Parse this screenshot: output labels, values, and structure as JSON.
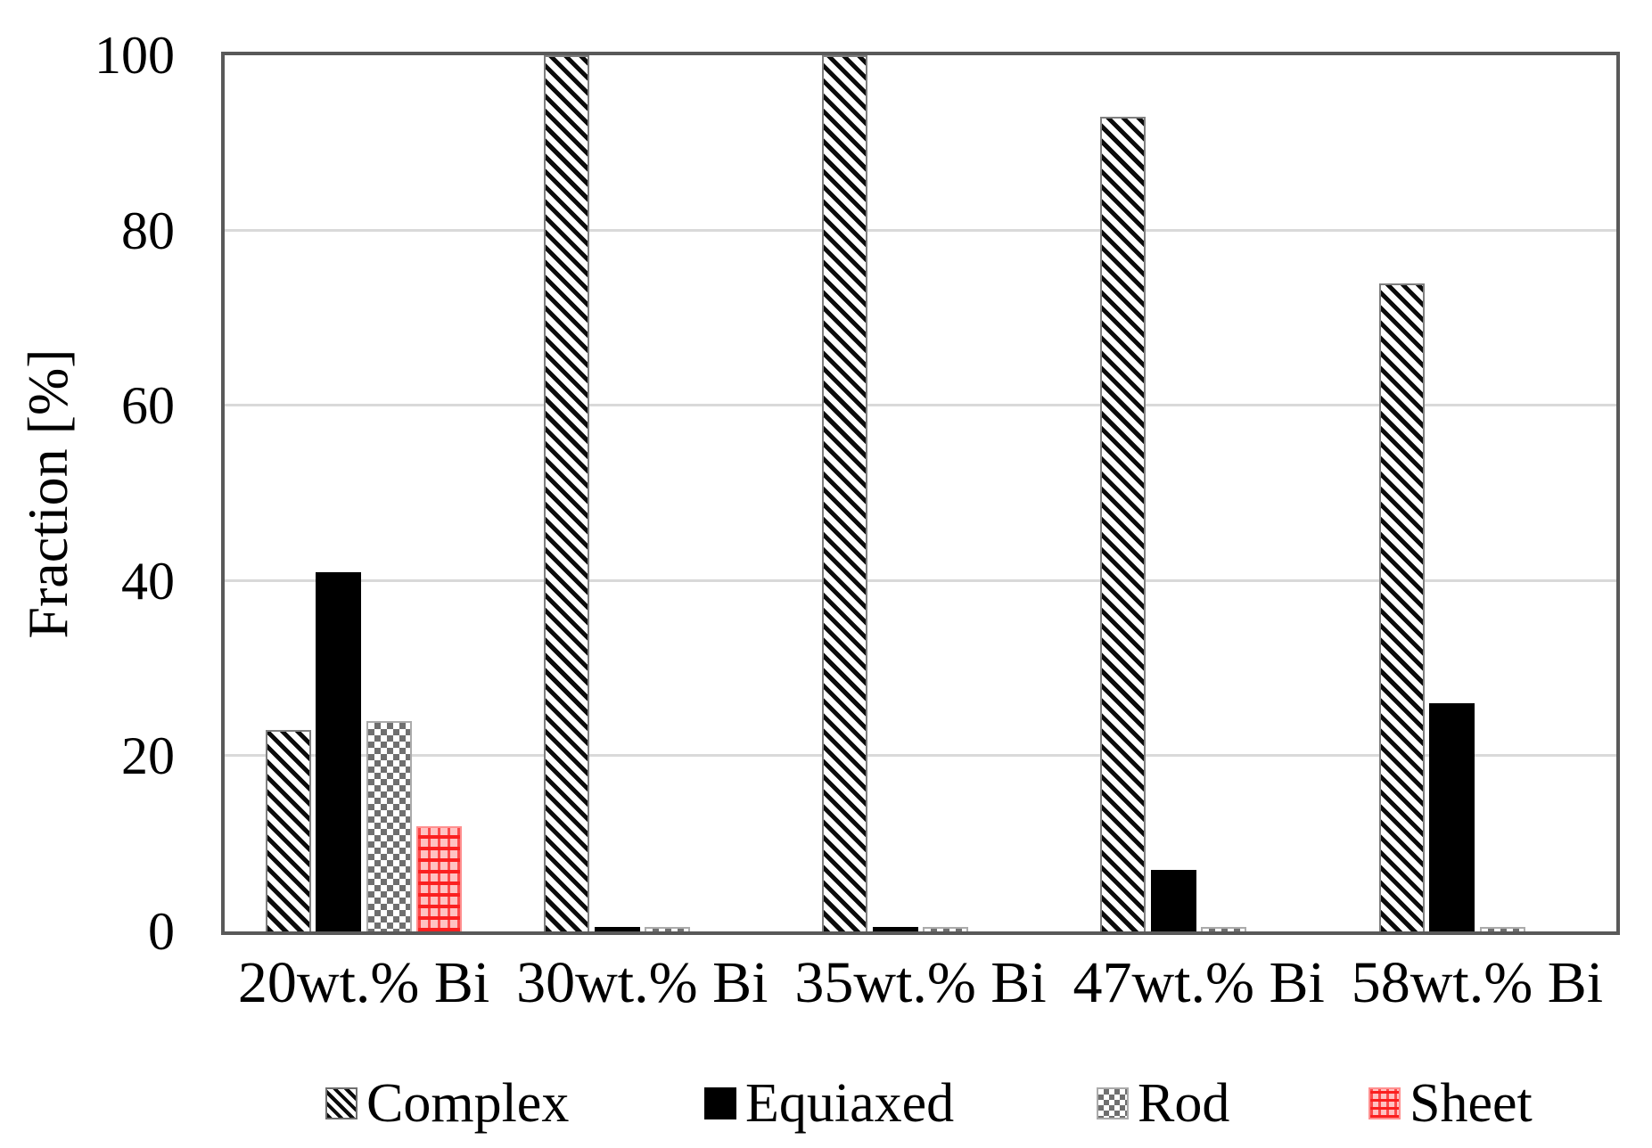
{
  "chart_data": {
    "type": "bar",
    "title": "",
    "xlabel": "",
    "ylabel": "Fraction [%]",
    "ylim": [
      0,
      100
    ],
    "yticks": [
      0,
      20,
      40,
      60,
      80,
      100
    ],
    "grid": "horizontal-light-gray",
    "legend_position": "bottom",
    "categories": [
      "20wt.% Bi",
      "30wt.% Bi",
      "35wt.% Bi",
      "47wt.% Bi",
      "58wt.% Bi"
    ],
    "series": [
      {
        "name": "Complex",
        "key": "complex",
        "pattern": "black-white-diagonal-hatch",
        "values": [
          23,
          100,
          100,
          93,
          74
        ]
      },
      {
        "name": "Equiaxed",
        "key": "equiaxed",
        "pattern": "solid-black",
        "values": [
          41,
          0.5,
          0.5,
          7,
          26
        ]
      },
      {
        "name": "Rod",
        "key": "rod",
        "pattern": "gray-white-checkerboard",
        "values": [
          24,
          0.5,
          0.5,
          0.5,
          0.5
        ]
      },
      {
        "name": "Sheet",
        "key": "sheet",
        "pattern": "red-grid-on-pink",
        "values": [
          12,
          0,
          0,
          0,
          0
        ]
      }
    ],
    "colors": {
      "axis_border": "#595959",
      "gridline": "#d9d9d9",
      "equiaxed_fill": "#000000",
      "sheet_red": "#fb2020",
      "rod_gray": "#6f6f6f",
      "text": "#000000"
    }
  }
}
